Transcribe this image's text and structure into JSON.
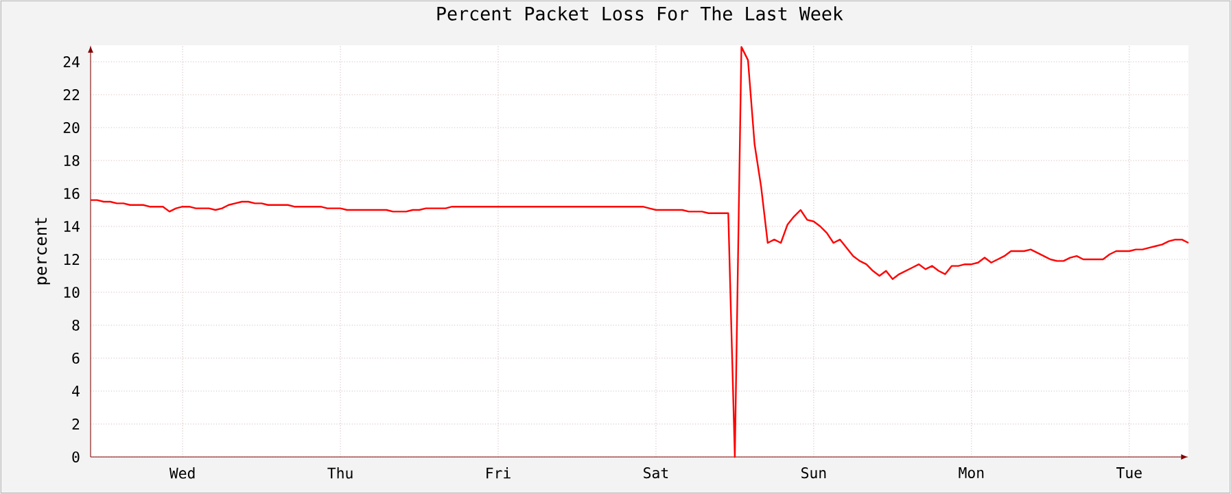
{
  "chart_data": {
    "type": "line",
    "title": "Percent Packet Loss For The Last Week",
    "ylabel": "percent",
    "categories": [
      null,
      null,
      null,
      null,
      null,
      null,
      null,
      null,
      null,
      null,
      null,
      null,
      null,
      null,
      "Wed",
      null,
      null,
      null,
      null,
      null,
      null,
      null,
      null,
      null,
      null,
      null,
      null,
      null,
      null,
      null,
      null,
      null,
      null,
      null,
      null,
      null,
      null,
      null,
      "Thu",
      null,
      null,
      null,
      null,
      null,
      null,
      null,
      null,
      null,
      null,
      null,
      null,
      null,
      null,
      null,
      null,
      null,
      null,
      null,
      null,
      null,
      null,
      null,
      "Fri",
      null,
      null,
      null,
      null,
      null,
      null,
      null,
      null,
      null,
      null,
      null,
      null,
      null,
      null,
      null,
      null,
      null,
      null,
      null,
      null,
      null,
      null,
      null,
      "Sat",
      null,
      null,
      null,
      null,
      null,
      null,
      null,
      null,
      null,
      null,
      null,
      null,
      null,
      null,
      null,
      null,
      null,
      null,
      null,
      null,
      null,
      null,
      null,
      "Sun",
      null,
      null,
      null,
      null,
      null,
      null,
      null,
      null,
      null,
      null,
      null,
      null,
      null,
      null,
      null,
      null,
      null,
      null,
      null,
      null,
      null,
      null,
      null,
      "Mon",
      null,
      null,
      null,
      null,
      null,
      null,
      null,
      null,
      null,
      null,
      null,
      null,
      null,
      null,
      null,
      null,
      null,
      null,
      null,
      null,
      null,
      null,
      null,
      "Tue",
      null,
      null,
      null,
      null,
      null,
      null,
      null,
      null,
      null
    ],
    "values": [
      15.6,
      15.6,
      15.5,
      15.5,
      15.4,
      15.4,
      15.3,
      15.3,
      15.3,
      15.2,
      15.2,
      15.2,
      14.9,
      15.1,
      15.2,
      15.2,
      15.1,
      15.1,
      15.1,
      15.0,
      15.1,
      15.3,
      15.4,
      15.5,
      15.5,
      15.4,
      15.4,
      15.3,
      15.3,
      15.3,
      15.3,
      15.2,
      15.2,
      15.2,
      15.2,
      15.2,
      15.1,
      15.1,
      15.1,
      15.0,
      15.0,
      15.0,
      15.0,
      15.0,
      15.0,
      15.0,
      14.9,
      14.9,
      14.9,
      15.0,
      15.0,
      15.1,
      15.1,
      15.1,
      15.1,
      15.2,
      15.2,
      15.2,
      15.2,
      15.2,
      15.2,
      15.2,
      15.2,
      15.2,
      15.2,
      15.2,
      15.2,
      15.2,
      15.2,
      15.2,
      15.2,
      15.2,
      15.2,
      15.2,
      15.2,
      15.2,
      15.2,
      15.2,
      15.2,
      15.2,
      15.2,
      15.2,
      15.2,
      15.2,
      15.2,
      15.1,
      15.0,
      15.0,
      15.0,
      15.0,
      15.0,
      14.9,
      14.9,
      14.9,
      14.8,
      14.8,
      14.8,
      14.8,
      0,
      24.9,
      24.1,
      19.0,
      16.4,
      13.0,
      13.2,
      13.0,
      14.1,
      14.6,
      15.0,
      14.4,
      14.3,
      14.0,
      13.6,
      13.0,
      13.2,
      12.7,
      12.2,
      11.9,
      11.7,
      11.3,
      11.0,
      11.3,
      10.8,
      11.1,
      11.3,
      11.5,
      11.7,
      11.4,
      11.6,
      11.3,
      11.1,
      11.6,
      11.6,
      11.7,
      11.7,
      11.8,
      12.1,
      11.8,
      12.0,
      12.2,
      12.5,
      12.5,
      12.5,
      12.6,
      12.4,
      12.2,
      12.0,
      11.9,
      11.9,
      12.1,
      12.2,
      12.0,
      12.0,
      12.0,
      12.0,
      12.3,
      12.5,
      12.5,
      12.5,
      12.6,
      12.6,
      12.7,
      12.8,
      12.9,
      13.1,
      13.2,
      13.2,
      13.0
    ],
    "color": "#ff0000",
    "ylim": [
      0,
      25
    ],
    "yticks": [
      0,
      2,
      4,
      6,
      8,
      10,
      12,
      14,
      16,
      18,
      20,
      22,
      24
    ],
    "grid": true,
    "marker": "none",
    "line_style": "solid"
  }
}
